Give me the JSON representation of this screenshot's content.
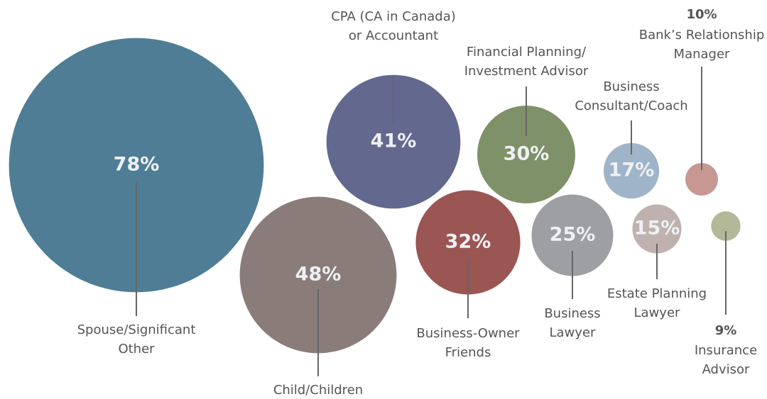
{
  "chart_data": {
    "type": "bubble",
    "categories": [
      [
        "Spouse/Significant",
        "Other"
      ],
      [
        "Child/Children"
      ],
      [
        "CPA (CA in Canada)",
        "or Accountant"
      ],
      [
        "Business-Owner",
        "Friends"
      ],
      [
        "Financial Planning/",
        "Investment Advisor"
      ],
      [
        "Business",
        "Lawyer"
      ],
      [
        "Business",
        "Consultant/Coach"
      ],
      [
        "Estate Planning",
        "Lawyer"
      ],
      [
        "Bank’s Relationship",
        "Manager"
      ],
      [
        "Insurance",
        "Advisor"
      ]
    ],
    "values": [
      78,
      48,
      41,
      32,
      30,
      25,
      17,
      15,
      10,
      9
    ],
    "value_labels": [
      "78%",
      "48%",
      "41%",
      "32%",
      "30%",
      "25%",
      "17%",
      "15%",
      "10%",
      "9%"
    ],
    "colors": [
      "#4f7d96",
      "#8a7d79",
      "#62688e",
      "#9b5552",
      "#7f9168",
      "#9d9fa3",
      "#9fb4c8",
      "#bfb2ae",
      "#c79892",
      "#b3b898"
    ]
  }
}
